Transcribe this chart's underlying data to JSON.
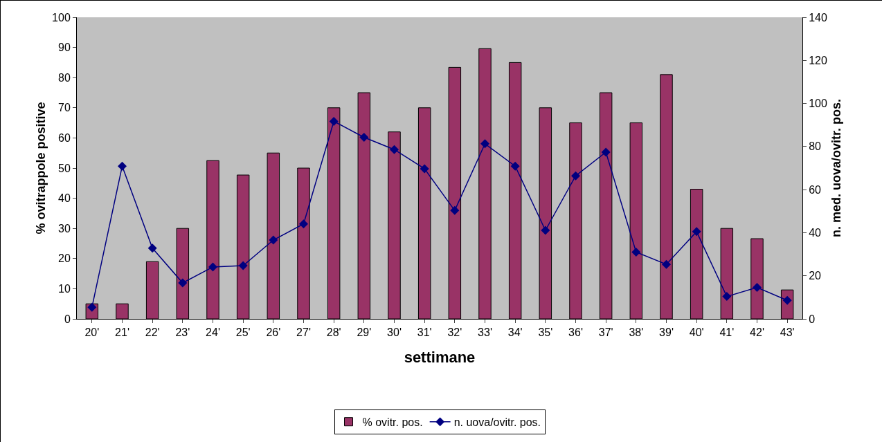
{
  "chart_data": {
    "type": "bar",
    "categories": [
      "20'",
      "21'",
      "22'",
      "23'",
      "24'",
      "25'",
      "26'",
      "27'",
      "28'",
      "29'",
      "30'",
      "31'",
      "32'",
      "33'",
      "34'",
      "35'",
      "36'",
      "37'",
      "38'",
      "39'",
      "40'",
      "41'",
      "42'",
      "43'"
    ],
    "series": [
      {
        "name": "% ovitr. pos.",
        "color": "#993366",
        "values": [
          5,
          5,
          19,
          30,
          52.5,
          47.7,
          55,
          50,
          70,
          75,
          62,
          70,
          83.4,
          89.6,
          85,
          70,
          65,
          75,
          65,
          81,
          43,
          30,
          26.6,
          9.6
        ]
      },
      {
        "name": "n. uova/ovitr. pos.",
        "type": "line",
        "axis": "y2",
        "color": "#000080",
        "marker": "diamond",
        "values": [
          5.4,
          70.9,
          32.8,
          16.7,
          24.1,
          24.7,
          36.6,
          44.1,
          91.7,
          84.3,
          78.6,
          69.7,
          50.3,
          81.3,
          70.9,
          41.1,
          66.4,
          77.4,
          31,
          25.3,
          40.5,
          10.4,
          14.6,
          8.6
        ]
      }
    ],
    "xlabel": "settimane",
    "ylabel": "% ovitrappole positive",
    "y2label": "n. med. uova/ovitr. pos.",
    "ylim": [
      0,
      100
    ],
    "yticks": [
      0,
      10,
      20,
      30,
      40,
      50,
      60,
      70,
      80,
      90,
      100
    ],
    "y2lim": [
      0,
      140
    ],
    "y2ticks": [
      0,
      20,
      40,
      60,
      80,
      100,
      120,
      140
    ],
    "grid": false,
    "legend": "bottom"
  }
}
